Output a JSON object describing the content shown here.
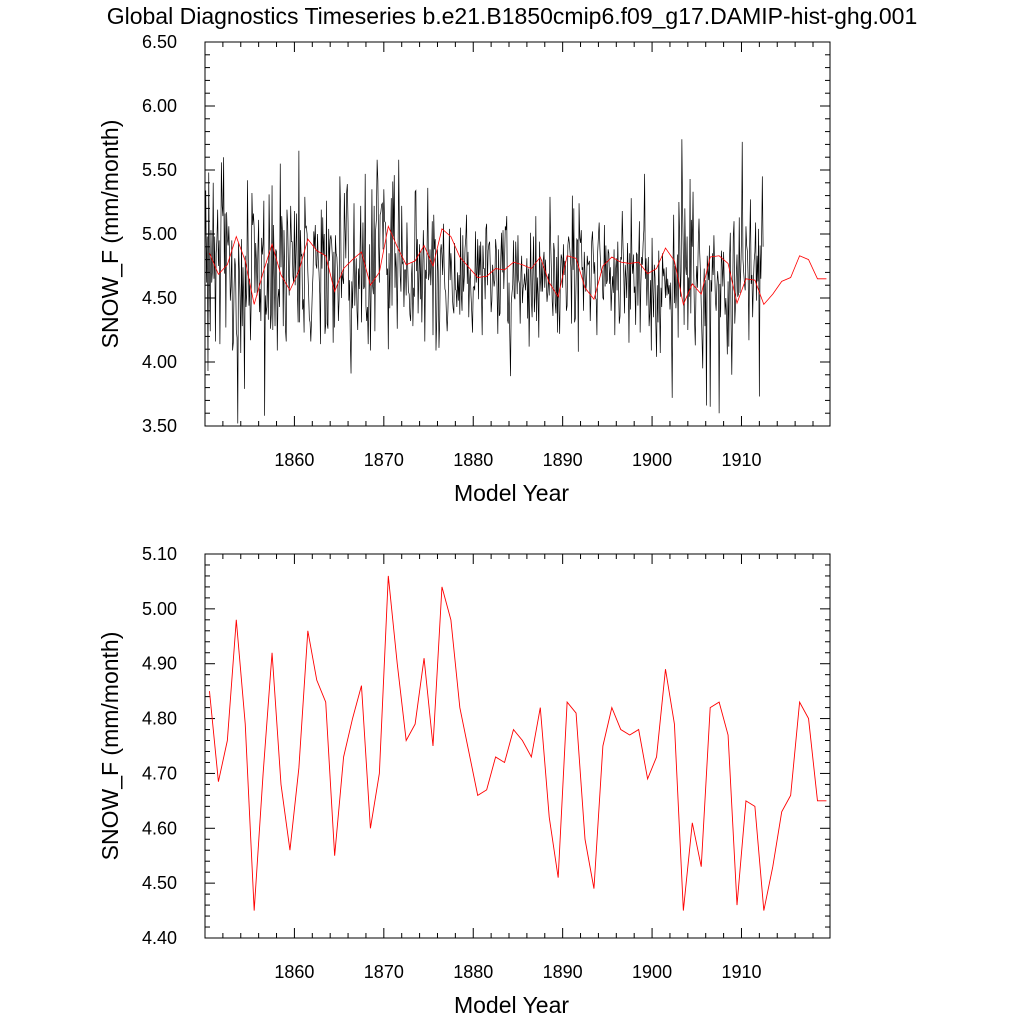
{
  "title": "Global Diagnostics Timeseries b.e21.B1850cmip6.f09_g17.DAMIP-hist-ghg.001",
  "colors": {
    "monthly": "#000000",
    "annual": "#ff0000"
  },
  "chart_data": [
    {
      "type": "line",
      "xlabel": "Model Year",
      "ylabel": "SNOW_F (mm/month)",
      "xlim": [
        1850,
        1919.9
      ],
      "ylim": [
        3.5,
        6.5
      ],
      "xticks": [
        1860,
        1870,
        1880,
        1890,
        1900,
        1910
      ],
      "yticks": [
        3.5,
        4.0,
        4.5,
        5.0,
        5.5,
        6.0,
        6.5
      ],
      "yticklabels": [
        "3.50",
        "4.00",
        "4.50",
        "5.00",
        "5.50",
        "6.00",
        "6.50"
      ],
      "series": [
        {
          "values_description_monthly": "",
          "color": "#000000",
          "monthly": true
        },
        {
          "color": "#ff0000",
          "annual": true
        }
      ]
    },
    {
      "type": "line",
      "xlabel": "Model Year",
      "ylabel": "SNOW_F (mm/month)",
      "xlim": [
        1850,
        1919.9
      ],
      "ylim": [
        4.4,
        5.1
      ],
      "xticks": [
        1860,
        1870,
        1880,
        1890,
        1900,
        1910
      ],
      "yticks": [
        4.4,
        4.5,
        4.6,
        4.7,
        4.8,
        4.9,
        5.0,
        5.1
      ],
      "yticklabels": [
        "4.40",
        "4.50",
        "4.60",
        "4.70",
        "4.80",
        "4.90",
        "5.00",
        "5.10"
      ],
      "series": [
        {
          "color": "#ff0000",
          "annual": true
        }
      ]
    }
  ],
  "annual": {
    "x": [
      1850.5,
      1851.5,
      1852.5,
      1853.5,
      1854.5,
      1855.5,
      1856.5,
      1857.5,
      1858.5,
      1859.5,
      1860.5,
      1861.5,
      1862.5,
      1863.5,
      1864.5,
      1865.5,
      1866.5,
      1867.5,
      1868.5,
      1869.5,
      1870.5,
      1871.5,
      1872.5,
      1873.5,
      1874.5,
      1875.5,
      1876.5,
      1877.5,
      1878.5,
      1879.5,
      1880.5,
      1881.5,
      1882.5,
      1883.5,
      1884.5,
      1885.5,
      1886.5,
      1887.5,
      1888.5,
      1889.5,
      1890.5,
      1891.5,
      1892.5,
      1893.5,
      1894.5,
      1895.5,
      1896.5,
      1897.5,
      1898.5,
      1899.5,
      1900.5,
      1901.5,
      1902.5,
      1903.5,
      1904.5,
      1905.5,
      1906.5,
      1907.5,
      1908.5,
      1909.5,
      1910.5,
      1911.5,
      1912.5,
      1913.5,
      1914.5,
      1915.5,
      1916.5,
      1917.5,
      1918.5,
      1919.5
    ],
    "y": [
      4.85,
      4.685,
      4.76,
      4.98,
      4.79,
      4.45,
      4.7,
      4.92,
      4.68,
      4.56,
      4.71,
      4.96,
      4.87,
      4.83,
      4.55,
      4.73,
      4.8,
      4.86,
      4.6,
      4.7,
      5.06,
      4.9,
      4.76,
      4.79,
      4.91,
      4.75,
      5.04,
      4.98,
      4.82,
      4.74,
      4.66,
      4.67,
      4.73,
      4.72,
      4.78,
      4.76,
      4.73,
      4.82,
      4.62,
      4.51,
      4.83,
      4.81,
      4.58,
      4.49,
      4.75,
      4.82,
      4.78,
      4.77,
      4.78,
      4.69,
      4.73,
      4.89,
      4.79,
      4.45,
      4.61,
      4.53,
      4.82,
      4.83,
      4.77,
      4.46,
      4.65,
      4.64,
      4.45,
      4.53,
      4.63,
      4.66,
      4.83,
      4.8,
      4.65,
      4.65
    ]
  },
  "monthly": {
    "x_start": 1850.0,
    "x_step": 0.0833333,
    "y": [
      4.8,
      5.34,
      4.62,
      4.98,
      3.93,
      5.48,
      4.66,
      4.24,
      5.03,
      4.62,
      4.71,
      5.4,
      4.65,
      4.98,
      4.16,
      4.85,
      4.96,
      5.19,
      4.75,
      4.95,
      4.14,
      4.79,
      5.56,
      5.22,
      5.14,
      5.6,
      4.69,
      5.16,
      4.27,
      5.17,
      4.96,
      4.91,
      5.06,
      4.82,
      4.48,
      4.59,
      4.95,
      4.09,
      4.15,
      4.58,
      4.81,
      4.74,
      4.25,
      4.19,
      3.52,
      4.93,
      4.73,
      4.51,
      4.07,
      4.96,
      4.28,
      4.74,
      4.48,
      3.79,
      4.83,
      4.43,
      4.53,
      5.42,
      4.84,
      4.44,
      4.65,
      4.17,
      4.47,
      5.32,
      5.07,
      5.16,
      5.05,
      4.54,
      4.93,
      4.79,
      4.52,
      4.88,
      5.11,
      4.39,
      4.57,
      4.32,
      4.97,
      4.84,
      4.92,
      5.26,
      3.58,
      4.52,
      4.37,
      4.43,
      4.77,
      4.33,
      5.31,
      4.87,
      4.26,
      4.37,
      5.38,
      4.25,
      5.07,
      4.67,
      4.28,
      4.88,
      4.86,
      4.09,
      4.5,
      4.57,
      4.43,
      5.55,
      4.74,
      5.14,
      5.01,
      4.28,
      5.03,
      4.72,
      4.25,
      4.16,
      5.19,
      5.07,
      4.73,
      4.52,
      4.85,
      5.22,
      4.94,
      4.94,
      4.67,
      4.62,
      5.18,
      4.6,
      4.88,
      5.16,
      4.53,
      4.31,
      5.65,
      4.31,
      5.03,
      4.83,
      4.84,
      4.41,
      4.49,
      4.23,
      5.29,
      5.05,
      5.06,
      5.0,
      4.71,
      4.55,
      4.34,
      4.31,
      4.16,
      4.33,
      4.55,
      4.69,
      5.02,
      4.9,
      5.07,
      4.76,
      4.73,
      5.0,
      4.8,
      4.7,
      4.53,
      4.14,
      5.19,
      4.73,
      5.13,
      4.84,
      5.0,
      4.22,
      4.29,
      5.26,
      4.3,
      4.26,
      5.04,
      4.79,
      4.96,
      4.99,
      4.93,
      4.81,
      4.15,
      4.86,
      4.27,
      4.99,
      4.85,
      4.82,
      4.68,
      4.32,
      4.49,
      5.45,
      5.19,
      4.5,
      4.7,
      4.65,
      4.61,
      5.32,
      5.04,
      4.81,
      5.32,
      5.39,
      5.09,
      4.48,
      4.64,
      4.17,
      3.91,
      4.63,
      4.42,
      4.71,
      5.24,
      4.44,
      4.64,
      4.81,
      4.4,
      4.25,
      4.73,
      4.57,
      4.86,
      5.22,
      4.31,
      4.75,
      5.09,
      4.57,
      4.59,
      5.47,
      4.44,
      4.32,
      4.43,
      4.14,
      4.53,
      4.92,
      4.09,
      4.56,
      5.35,
      4.59,
      4.53,
      5.22,
      4.24,
      5.03,
      5.11,
      5.58,
      5.42,
      4.92,
      4.62,
      5.15,
      5.17,
      5.23,
      5.24,
      4.88,
      5.35,
      5.1,
      5.09,
      4.99,
      4.68,
      4.73,
      4.1,
      4.85,
      4.42,
      4.91,
      5.28,
      4.44,
      5.41,
      4.98,
      5.46,
      4.58,
      4.85,
      4.71,
      4.26,
      4.79,
      5.58,
      4.98,
      4.67,
      4.55,
      5.22,
      4.77,
      4.78,
      4.43,
      4.72,
      4.72,
      4.52,
      5.09,
      4.76,
      4.55,
      4.53,
      4.37,
      4.32,
      4.66,
      4.78,
      4.28,
      4.58,
      4.51,
      5.33,
      5.34,
      4.71,
      4.96,
      4.38,
      4.7,
      4.92,
      4.49,
      4.87,
      4.31,
      4.64,
      5.03,
      4.8,
      4.16,
      4.72,
      4.65,
      4.88,
      5.36,
      4.64,
      4.69,
      4.88,
      4.6,
      4.78,
      5.1,
      4.21,
      5.15,
      4.88,
      4.96,
      4.09,
      4.32,
      4.88,
      4.71,
      4.11,
      4.32,
      4.86,
      4.92,
      4.83,
      4.68,
      5.08,
      4.74,
      4.57,
      4.55,
      4.37,
      4.24,
      4.4,
      4.66,
      5.04,
      4.64,
      4.85,
      4.74,
      4.5,
      4.42,
      4.38,
      4.93,
      4.57,
      4.56,
      4.43,
      4.7,
      4.48,
      4.68,
      4.37,
      5.05,
      4.52,
      4.4,
      4.99,
      4.55,
      4.66,
      4.89,
      4.97,
      5.15,
      4.61,
      4.86,
      4.35,
      4.63,
      4.72,
      4.52,
      4.39,
      4.23,
      4.58,
      4.59,
      4.56,
      5.02,
      4.62,
      4.7,
      4.96,
      4.49,
      4.91,
      4.68,
      4.94,
      4.55,
      4.21,
      4.91,
      4.73,
      4.73,
      4.49,
      5.04,
      5.08,
      4.6,
      4.87,
      4.92,
      4.94,
      4.71,
      4.39,
      4.48,
      4.76,
      4.67,
      4.59,
      4.64,
      4.96,
      4.88,
      4.53,
      4.22,
      4.88,
      4.36,
      4.38,
      4.82,
      5.01,
      4.7,
      5.03,
      4.57,
      4.78,
      5.06,
      5.03,
      5.14,
      4.33,
      4.3,
      4.62,
      4.22,
      3.89,
      4.46,
      4.54,
      4.6,
      4.95,
      4.51,
      4.49,
      4.94,
      4.76,
      4.53,
      4.99,
      4.64,
      4.61,
      4.3,
      4.7,
      4.83,
      4.46,
      4.58,
      4.61,
      4.69,
      4.56,
      4.64,
      4.81,
      4.34,
      4.73,
      4.12,
      4.54,
      5.01,
      4.49,
      4.35,
      4.71,
      4.98,
      4.39,
      4.51,
      5.14,
      4.32,
      4.66,
      4.53,
      4.19,
      4.94,
      4.66,
      4.55,
      4.8,
      4.55,
      4.79,
      4.86,
      4.58,
      4.8,
      4.62,
      4.47,
      4.54,
      4.69,
      4.52,
      5.29,
      4.91,
      4.69,
      4.47,
      4.36,
      4.93,
      4.86,
      4.46,
      4.38,
      4.82,
      4.23,
      4.99,
      4.4,
      4.22,
      4.69,
      4.84,
      4.81,
      4.58,
      4.92,
      4.68,
      4.79,
      4.74,
      4.4,
      4.44,
      4.91,
      4.98,
      4.93,
      4.85,
      4.74,
      4.3,
      5.3,
      4.72,
      5.2,
      4.31,
      4.34,
      4.62,
      4.96,
      4.95,
      4.08,
      5.24,
      4.97,
      4.93,
      5.03,
      4.72,
      4.74,
      4.4,
      4.86,
      4.69,
      4.55,
      4.62,
      4.83,
      4.76,
      4.77,
      4.79,
      4.32,
      4.54,
      4.94,
      5.02,
      4.86,
      4.69,
      4.78,
      4.5,
      4.49,
      4.21,
      4.86,
      4.98,
      5.09,
      4.89,
      4.75,
      4.7,
      4.71,
      4.5,
      4.49,
      5.07,
      4.59,
      4.91,
      4.61,
      4.64,
      4.88,
      4.85,
      4.61,
      4.74,
      4.4,
      4.55,
      4.67,
      4.54,
      4.88,
      4.21,
      4.72,
      4.81,
      4.56,
      4.94,
      4.61,
      4.3,
      4.36,
      4.82,
      4.8,
      5.18,
      4.91,
      4.69,
      4.38,
      4.76,
      4.66,
      4.5,
      4.93,
      4.69,
      4.15,
      4.85,
      4.41,
      5.28,
      4.79,
      4.69,
      4.84,
      4.54,
      4.59,
      4.29,
      4.85,
      4.84,
      4.44,
      4.81,
      5.1,
      4.23,
      4.61,
      4.82,
      4.76,
      4.93,
      5.03,
      5.47,
      4.65,
      4.81,
      4.44,
      4.68,
      4.82,
      4.28,
      4.38,
      4.64,
      4.09,
      4.97,
      4.55,
      4.35,
      4.76,
      4.66,
      4.31,
      4.04,
      4.6,
      4.31,
      4.87,
      4.45,
      4.07,
      4.58,
      4.43,
      4.85,
      4.67,
      4.73,
      4.64,
      4.5,
      4.74,
      4.52,
      4.65,
      4.53,
      4.6,
      4.41,
      4.62,
      4.3,
      3.72,
      4.71,
      5.15,
      4.46,
      4.75,
      4.42,
      4.59,
      4.84,
      4.19,
      5.25,
      4.99,
      4.51,
      4.71,
      5.74,
      5.18,
      4.82,
      4.29,
      5.2,
      4.75,
      4.68,
      4.98,
      4.25,
      4.66,
      4.51,
      5.43,
      4.38,
      5.11,
      4.9,
      5.33,
      4.69,
      4.32,
      4.13,
      4.59,
      4.75,
      4.58,
      4.93,
      5.12,
      4.85,
      4.69,
      4.44,
      4.19,
      3.95,
      4.54,
      4.73,
      4.28,
      4.64,
      3.66,
      4.83,
      4.71,
      4.64,
      4.91,
      3.65,
      4.64,
      4.55,
      4.85,
      4.68,
      4.99,
      4.74,
      4.48,
      4.4,
      4.59,
      4.71,
      4.62,
      3.6,
      4.61,
      4.35,
      4.87,
      4.77,
      4.59,
      4.86,
      4.6,
      4.37,
      4.5,
      4.36,
      4.06,
      4.63,
      4.12,
      4.82,
      5.01,
      4.34,
      3.9,
      4.43,
      4.98,
      5.1,
      4.3,
      4.45,
      4.67,
      4.84,
      4.51,
      4.53,
      5.13,
      4.54,
      4.71,
      4.95,
      5.72,
      4.8,
      4.7,
      4.61,
      4.56,
      5.06,
      4.91,
      4.86,
      4.65,
      4.17,
      4.92,
      5.27,
      4.61,
      4.68,
      4.35,
      4.63,
      4.79,
      4.86,
      5.09,
      4.48,
      4.83,
      4.63,
      5.04,
      3.73,
      4.91,
      4.65,
      4.95,
      5.45,
      4.9
    ]
  }
}
